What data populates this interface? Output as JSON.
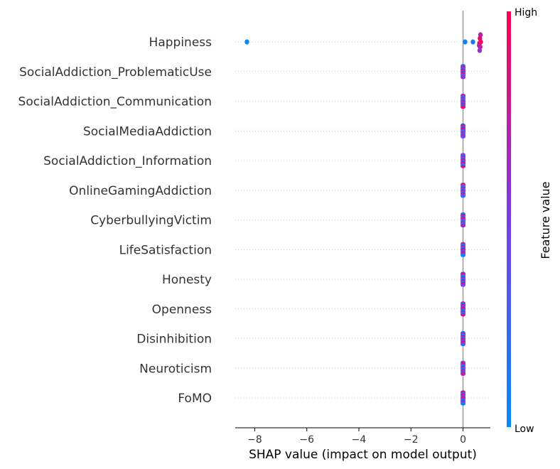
{
  "chart_data": {
    "type": "scatter",
    "subtype": "shap-beeswarm",
    "features": [
      "Happiness",
      "SocialAddiction_ProblematicUse",
      "SocialAddiction_Communication",
      "SocialMediaAddiction",
      "SocialAddiction_Information",
      "OnlineGamingAddiction",
      "CyberbullyingVictim",
      "LifeSatisfaction",
      "Honesty",
      "Openness",
      "Disinhibition",
      "Neuroticism",
      "FoMO"
    ],
    "xlabel": "SHAP value (impact on model output)",
    "xlim": [
      -8.75,
      1.05
    ],
    "xticks": [
      -8,
      -6,
      -4,
      -2,
      0
    ],
    "xtick_labels": [
      "−8",
      "−6",
      "−4",
      "−2",
      "0"
    ],
    "colorbar": {
      "title": "Feature value",
      "high_label": "High",
      "low_label": "Low",
      "low_color": "#008bfb",
      "mid_color": "#7a3ce6",
      "high_color": "#ff0052"
    },
    "happiness_points": [
      {
        "x": -8.3,
        "value": 0.0
      },
      {
        "x": 0.08,
        "value": 0.05
      },
      {
        "x": 0.38,
        "value": 0.12
      },
      {
        "x": 0.63,
        "value": 0.85
      },
      {
        "x": 0.66,
        "value": 0.95
      },
      {
        "x": 0.64,
        "value": 0.6
      },
      {
        "x": 0.67,
        "value": 0.75
      },
      {
        "x": 0.65,
        "value": 0.9
      },
      {
        "x": 0.68,
        "value": 1.0
      },
      {
        "x": 0.62,
        "value": 0.7
      }
    ],
    "other_features_shap": 0.0,
    "grid": false,
    "legend": "colorbar-right"
  }
}
